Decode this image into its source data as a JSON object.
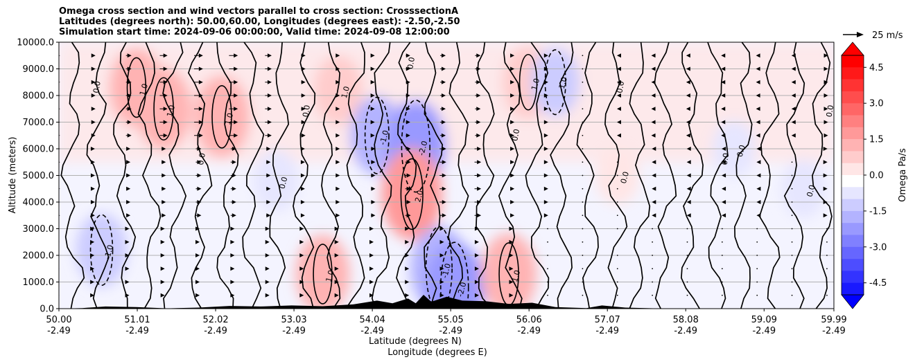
{
  "chart_data": {
    "type": "contour",
    "title_lines": [
      "Omega cross section and wind vectors parallel to cross section: CrosssectionA",
      "Latitudes (degrees north): 50.00,60.00, Longitudes (degrees east): -2.50,-2.50",
      "Simulation start time: 2024-09-06 00:00:00, Valid time: 2024-09-08 12:00:00"
    ],
    "ylabel": "Altitude (meters)",
    "xlabel_lat": "Latitude (degrees N)",
    "xlabel_lon": "Longitude (degrees E)",
    "ylim": [
      0,
      10000
    ],
    "yticks": [
      "0.0",
      "1000.0",
      "2000.0",
      "3000.0",
      "4000.0",
      "5000.0",
      "6000.0",
      "7000.0",
      "8000.0",
      "9000.0",
      "10000.0"
    ],
    "ytick_values": [
      0,
      1000,
      2000,
      3000,
      4000,
      5000,
      6000,
      7000,
      8000,
      9000,
      10000
    ],
    "xlim": [
      50.0,
      59.99
    ],
    "xticks_lat": [
      "50.00",
      "51.01",
      "52.02",
      "53.03",
      "54.04",
      "55.05",
      "56.06",
      "57.07",
      "58.08",
      "59.09",
      "59.99"
    ],
    "xticks_lon": [
      "-2.49",
      "-2.49",
      "-2.49",
      "-2.49",
      "-2.49",
      "-2.49",
      "-2.49",
      "-2.49",
      "-2.49",
      "-2.49",
      "-2.49"
    ],
    "xtick_values": [
      50.0,
      51.01,
      52.02,
      53.03,
      54.04,
      55.05,
      56.06,
      57.07,
      58.08,
      59.09,
      59.99
    ],
    "grid": "horizontal",
    "colorbar": {
      "label": "Omega Pa/s",
      "range": [
        -5,
        5
      ],
      "ticks": [
        "-4.5",
        "-3.0",
        "-1.5",
        "0.0",
        "1.5",
        "3.0",
        "4.5"
      ],
      "tick_values": [
        -4.5,
        -3.0,
        -1.5,
        0.0,
        1.5,
        3.0,
        4.5
      ],
      "levels": 20,
      "extend": "both",
      "colormap": "bwr",
      "negative_color": "#0000ff",
      "positive_color": "#ff0000"
    },
    "quiver_key": {
      "label": "25 m/s",
      "speed": 25
    },
    "contour_labels": [
      "0.0",
      "1.0",
      "-1.0",
      "2.0",
      "-2.0"
    ],
    "wind_columns": [
      {
        "lat": 50.0,
        "u_top": 2,
        "u_mid": 2,
        "u_low": 1
      },
      {
        "lat": 50.45,
        "u_top": 3,
        "u_mid": 2,
        "u_low": 1
      },
      {
        "lat": 50.9,
        "u_top": 5,
        "u_mid": 3,
        "u_low": 1
      },
      {
        "lat": 51.35,
        "u_top": 7,
        "u_mid": 4,
        "u_low": 2
      },
      {
        "lat": 51.8,
        "u_top": 8,
        "u_mid": 5,
        "u_low": 2
      },
      {
        "lat": 52.25,
        "u_top": 8,
        "u_mid": 5,
        "u_low": 2
      },
      {
        "lat": 52.7,
        "u_top": 6,
        "u_mid": 4,
        "u_low": 2
      },
      {
        "lat": 53.15,
        "u_top": 4,
        "u_mid": 3,
        "u_low": 1
      },
      {
        "lat": 53.6,
        "u_top": 3,
        "u_mid": 3,
        "u_low": 1
      },
      {
        "lat": 54.05,
        "u_top": 3,
        "u_mid": 4,
        "u_low": 1
      },
      {
        "lat": 54.5,
        "u_top": 4,
        "u_mid": 5,
        "u_low": 2
      },
      {
        "lat": 54.95,
        "u_top": 5,
        "u_mid": 6,
        "u_low": 2
      },
      {
        "lat": 55.4,
        "u_top": 5,
        "u_mid": 6,
        "u_low": 2
      },
      {
        "lat": 55.85,
        "u_top": 3,
        "u_mid": 3,
        "u_low": 1
      },
      {
        "lat": 56.3,
        "u_top": 1,
        "u_mid": 1,
        "u_low": 0
      },
      {
        "lat": 56.75,
        "u_top": 0,
        "u_mid": 0,
        "u_low": 0
      },
      {
        "lat": 57.2,
        "u_top": -1,
        "u_mid": 0,
        "u_low": 0
      },
      {
        "lat": 57.65,
        "u_top": -2,
        "u_mid": -1,
        "u_low": 0
      },
      {
        "lat": 58.1,
        "u_top": -2,
        "u_mid": -1,
        "u_low": 0
      },
      {
        "lat": 58.55,
        "u_top": -2,
        "u_mid": -1,
        "u_low": 0
      },
      {
        "lat": 59.0,
        "u_top": -2,
        "u_mid": -1,
        "u_low": 0
      },
      {
        "lat": 59.45,
        "u_top": -1,
        "u_mid": 0,
        "u_low": 0
      },
      {
        "lat": 59.9,
        "u_top": 2,
        "u_mid": 1,
        "u_low": 0
      }
    ],
    "omega_features": [
      {
        "lat": 50.55,
        "alt": 2200,
        "omega": -1.5
      },
      {
        "lat": 51.0,
        "alt": 8300,
        "omega": 1.8
      },
      {
        "lat": 51.35,
        "alt": 7500,
        "omega": 2.0
      },
      {
        "lat": 52.1,
        "alt": 7200,
        "omega": 2.0
      },
      {
        "lat": 52.8,
        "alt": 4800,
        "omega": -0.8
      },
      {
        "lat": 53.6,
        "alt": 8200,
        "omega": 1.2
      },
      {
        "lat": 54.1,
        "alt": 6500,
        "omega": -1.8
      },
      {
        "lat": 54.6,
        "alt": 6100,
        "omega": -2.6
      },
      {
        "lat": 54.55,
        "alt": 4300,
        "omega": 2.6
      },
      {
        "lat": 54.9,
        "alt": 1500,
        "omega": -2.2
      },
      {
        "lat": 55.1,
        "alt": 800,
        "omega": -2.5
      },
      {
        "lat": 53.4,
        "alt": 1300,
        "omega": 1.8
      },
      {
        "lat": 55.8,
        "alt": 1300,
        "omega": 2.0
      },
      {
        "lat": 56.05,
        "alt": 8500,
        "omega": 1.5
      },
      {
        "lat": 56.4,
        "alt": 8500,
        "omega": -1.2
      },
      {
        "lat": 57.2,
        "alt": 5000,
        "omega": 0.6
      },
      {
        "lat": 58.7,
        "alt": 6000,
        "omega": -0.5
      },
      {
        "lat": 59.6,
        "alt": 4500,
        "omega": -0.6
      }
    ]
  }
}
